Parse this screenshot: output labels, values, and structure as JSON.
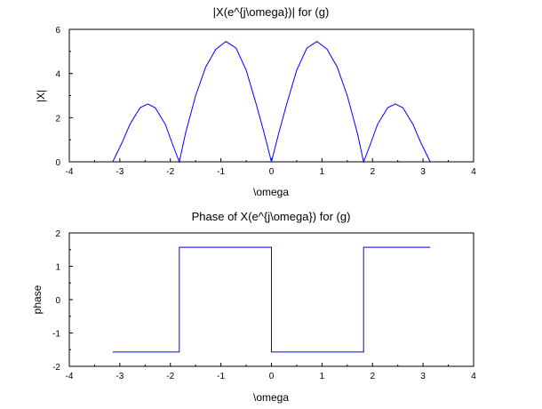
{
  "chart_data": [
    {
      "type": "line",
      "title": "|X(e^{j\\omega})| for (g)",
      "xlabel": "\\omega",
      "ylabel": "|X|",
      "xlim": [
        -4,
        4
      ],
      "ylim": [
        0,
        6
      ],
      "xticks": [
        -4,
        -3,
        -2,
        -1,
        0,
        1,
        2,
        3,
        4
      ],
      "yticks": [
        0,
        2,
        4,
        6
      ],
      "grid": false,
      "color": "#0000ff",
      "series": [
        {
          "x": [
            -3.1416,
            -2.95,
            -2.8,
            -2.6,
            -2.45,
            -2.3,
            -2.1,
            -1.95,
            -1.8235,
            -1.7,
            -1.5,
            -1.3,
            -1.1,
            -0.9,
            -0.7,
            -0.5,
            -0.3,
            -0.15,
            0,
            0.15,
            0.3,
            0.5,
            0.7,
            0.9,
            1.1,
            1.3,
            1.5,
            1.7,
            1.8235,
            1.95,
            2.1,
            2.3,
            2.45,
            2.6,
            2.8,
            2.95,
            3.1416
          ],
          "y": [
            0,
            0.9,
            1.7,
            2.45,
            2.62,
            2.45,
            1.7,
            0.75,
            0,
            1.3,
            3.0,
            4.3,
            5.1,
            5.45,
            5.15,
            4.15,
            2.6,
            1.35,
            0,
            1.35,
            2.6,
            4.15,
            5.15,
            5.45,
            5.1,
            4.3,
            3.0,
            1.3,
            0,
            0.75,
            1.7,
            2.45,
            2.62,
            2.45,
            1.7,
            0.9,
            0
          ]
        }
      ]
    },
    {
      "type": "line",
      "title": "Phase of X(e^{j\\omega}) for (g)",
      "xlabel": "\\omega",
      "ylabel": "phase",
      "xlim": [
        -4,
        4
      ],
      "ylim": [
        -2,
        2
      ],
      "xticks": [
        -4,
        -3,
        -2,
        -1,
        0,
        1,
        2,
        3,
        4
      ],
      "yticks": [
        -2,
        -1,
        0,
        1,
        2
      ],
      "grid": false,
      "color": "#0000ff",
      "series": [
        {
          "x": [
            -3.1416,
            -1.8235,
            -1.8235,
            0,
            0,
            1.8235,
            1.8235,
            3.1416
          ],
          "y": [
            -1.5708,
            -1.5708,
            1.5708,
            1.5708,
            -1.5708,
            -1.5708,
            1.5708,
            1.5708
          ]
        }
      ]
    }
  ]
}
